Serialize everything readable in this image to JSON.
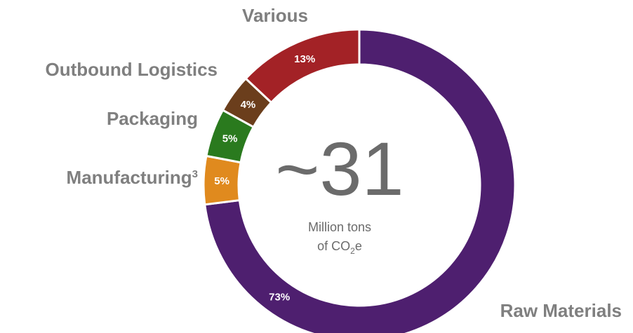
{
  "chart_data": {
    "type": "pie",
    "variant": "donut",
    "direction": "clockwise",
    "start": "12 o'clock",
    "slices": [
      {
        "label": "Raw Materials",
        "value": 73,
        "value_label": "73%",
        "color": "#4e1f6f"
      },
      {
        "label": "Manufacturing",
        "label_sup": "3",
        "value": 5,
        "value_label": "5%",
        "color": "#e08a1e"
      },
      {
        "label": "Packaging",
        "value": 5,
        "value_label": "5%",
        "color": "#2a7a1e"
      },
      {
        "label": "Outbound Logistics",
        "value": 4,
        "value_label": "4%",
        "color": "#6b3e1c"
      },
      {
        "label": "Various",
        "value": 13,
        "value_label": "13%",
        "color": "#a32226"
      }
    ],
    "center": {
      "value": "~31",
      "unit_line1": "Million tons",
      "unit_line2_pre": "of CO",
      "unit_line2_sub": "2",
      "unit_line2_post": "e"
    },
    "label_color": "#7f7f7f"
  }
}
